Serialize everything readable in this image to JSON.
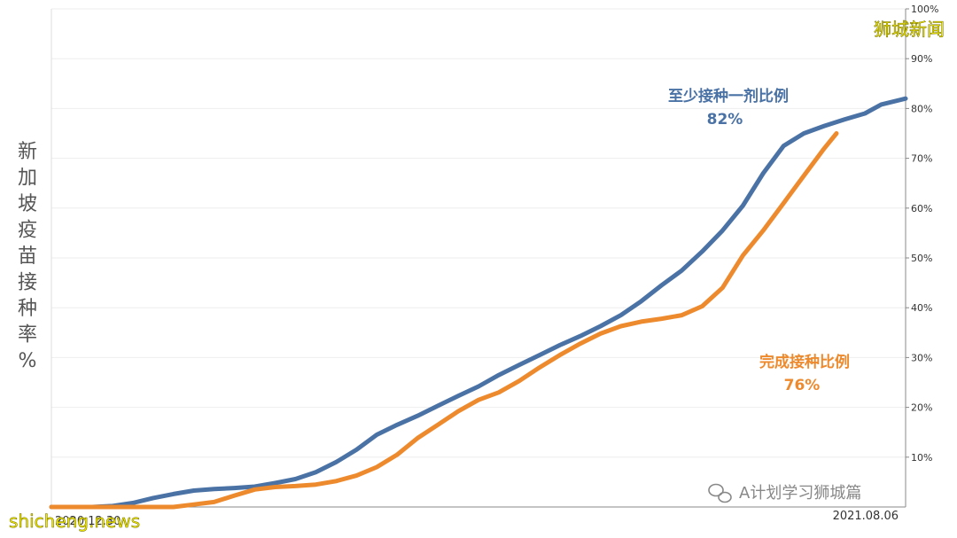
{
  "chart_data": {
    "type": "line",
    "ylabel": "新加坡疫苗接种率%",
    "x_tick_labels": [
      "2020.12.30",
      "2021.08.06"
    ],
    "y_ticks": [
      10,
      20,
      30,
      40,
      50,
      60,
      70,
      80,
      90,
      100
    ],
    "y_tick_labels": [
      "10%",
      "20%",
      "30%",
      "40%",
      "50%",
      "60%",
      "70%",
      "80%",
      "90%",
      "100%"
    ],
    "ylim": [
      0,
      100
    ],
    "grid": true,
    "series": [
      {
        "name": "至少接种一剂比例",
        "label_value": "82%",
        "color": "#4a72a5",
        "points": [
          [
            0,
            0
          ],
          [
            10,
            0
          ],
          [
            15,
            0.2
          ],
          [
            20,
            0.8
          ],
          [
            25,
            1.8
          ],
          [
            30,
            2.6
          ],
          [
            35,
            3.3
          ],
          [
            40,
            3.6
          ],
          [
            45,
            3.8
          ],
          [
            50,
            4.1
          ],
          [
            55,
            4.8
          ],
          [
            60,
            5.6
          ],
          [
            65,
            7.0
          ],
          [
            70,
            9.0
          ],
          [
            75,
            11.5
          ],
          [
            80,
            14.5
          ],
          [
            85,
            16.5
          ],
          [
            90,
            18.3
          ],
          [
            95,
            20.3
          ],
          [
            100,
            22.3
          ],
          [
            105,
            24.2
          ],
          [
            110,
            26.5
          ],
          [
            115,
            28.5
          ],
          [
            120,
            30.5
          ],
          [
            125,
            32.5
          ],
          [
            130,
            34.3
          ],
          [
            135,
            36.3
          ],
          [
            140,
            38.5
          ],
          [
            145,
            41.3
          ],
          [
            150,
            44.5
          ],
          [
            155,
            47.5
          ],
          [
            160,
            51.3
          ],
          [
            165,
            55.5
          ],
          [
            170,
            60.5
          ],
          [
            175,
            67.0
          ],
          [
            180,
            72.5
          ],
          [
            185,
            75.0
          ],
          [
            190,
            76.5
          ],
          [
            195,
            77.8
          ],
          [
            200,
            79.0
          ],
          [
            204,
            80.8
          ],
          [
            210,
            82.0
          ]
        ]
      },
      {
        "name": "完成接种比例",
        "label_value": "76%",
        "color": "#ee8a2e",
        "points": [
          [
            0,
            0
          ],
          [
            10,
            0
          ],
          [
            15,
            0
          ],
          [
            20,
            0
          ],
          [
            25,
            0
          ],
          [
            30,
            0
          ],
          [
            35,
            0.5
          ],
          [
            40,
            1.0
          ],
          [
            45,
            2.3
          ],
          [
            50,
            3.5
          ],
          [
            55,
            4.0
          ],
          [
            60,
            4.2
          ],
          [
            65,
            4.5
          ],
          [
            70,
            5.2
          ],
          [
            75,
            6.3
          ],
          [
            80,
            8.0
          ],
          [
            85,
            10.5
          ],
          [
            90,
            13.8
          ],
          [
            95,
            16.5
          ],
          [
            100,
            19.2
          ],
          [
            105,
            21.5
          ],
          [
            110,
            23.0
          ],
          [
            115,
            25.3
          ],
          [
            120,
            28.0
          ],
          [
            125,
            30.5
          ],
          [
            130,
            32.8
          ],
          [
            135,
            34.8
          ],
          [
            140,
            36.3
          ],
          [
            145,
            37.2
          ],
          [
            150,
            37.8
          ],
          [
            155,
            38.5
          ],
          [
            160,
            40.3
          ],
          [
            165,
            44.0
          ],
          [
            170,
            50.5
          ],
          [
            175,
            55.5
          ],
          [
            180,
            61.0
          ],
          [
            185,
            66.5
          ],
          [
            190,
            72.0
          ],
          [
            193,
            75.0
          ]
        ]
      }
    ],
    "x_range": [
      0,
      210
    ]
  },
  "watermarks": {
    "top_right": "狮城新闻",
    "bottom_left": "shicheng.news",
    "bottom_right": "A计划学习狮城篇"
  }
}
